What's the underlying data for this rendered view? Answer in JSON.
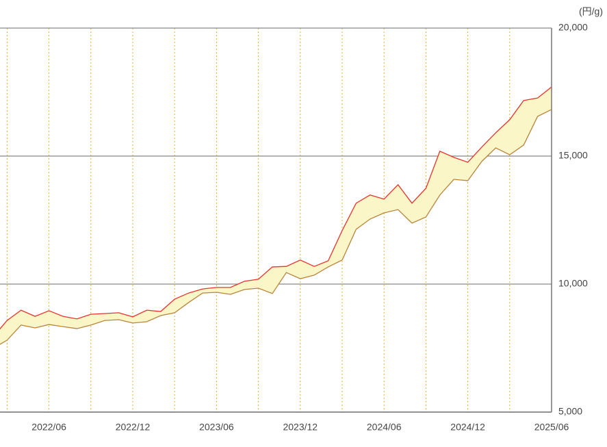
{
  "chart_data": {
    "type": "range-line",
    "y_label": "(円/g)",
    "categories": [
      null,
      null,
      null,
      null,
      "2022/06",
      null,
      null,
      null,
      null,
      null,
      "2022/12",
      null,
      null,
      null,
      null,
      null,
      "2023/06",
      null,
      null,
      null,
      null,
      null,
      "2023/12",
      null,
      null,
      null,
      null,
      null,
      "2024/06",
      null,
      null,
      null,
      null,
      null,
      "2024/12",
      null,
      null,
      null,
      null,
      null,
      "2025/06"
    ],
    "series": [
      {
        "color": "#e8332a",
        "values": [
          7940,
          8580,
          8980,
          8740,
          8960,
          8740,
          8640,
          8820,
          8850,
          8880,
          8720,
          8980,
          8930,
          9410,
          9650,
          9810,
          9870,
          9870,
          10110,
          10190,
          10670,
          10690,
          10940,
          10690,
          10910,
          12090,
          13160,
          13480,
          13320,
          13880,
          13160,
          13740,
          15190,
          14950,
          14760,
          15350,
          15910,
          16420,
          17170,
          17270,
          17700
        ]
      },
      {
        "color": "#b8843c",
        "values": [
          7490,
          7810,
          8400,
          8290,
          8420,
          8340,
          8260,
          8400,
          8580,
          8610,
          8480,
          8530,
          8770,
          8880,
          9280,
          9650,
          9680,
          9600,
          9790,
          9840,
          9630,
          10450,
          10210,
          10350,
          10670,
          10940,
          12140,
          12540,
          12780,
          12910,
          12380,
          12620,
          13480,
          14090,
          14040,
          14790,
          15320,
          15050,
          15430,
          16550,
          16820
        ]
      }
    ],
    "fill_color": "#fbf6c8",
    "ylim": [
      5000,
      20000
    ],
    "yticks": [
      {
        "value": 5000,
        "label": "5,000"
      },
      {
        "value": 10000,
        "label": "10,000"
      },
      {
        "value": 15000,
        "label": "15,000"
      },
      {
        "value": 20000,
        "label": "20,000"
      }
    ],
    "grid": true
  }
}
